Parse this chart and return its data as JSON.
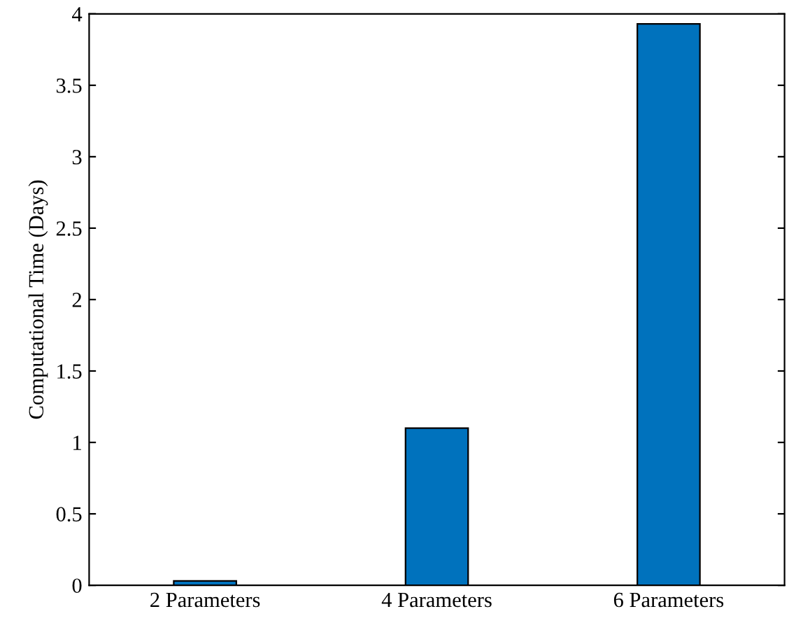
{
  "chart_data": {
    "type": "bar",
    "ylabel": "Computational Time (Days)",
    "categories": [
      "2 Parameters",
      "4 Parameters",
      "6 Parameters"
    ],
    "values": [
      0.03,
      1.1,
      3.93
    ],
    "color": "#0072bd",
    "ylim": [
      0,
      4
    ],
    "yticks": [
      0,
      0.5,
      1,
      1.5,
      2,
      2.5,
      3,
      3.5,
      4
    ],
    "grid": false,
    "legend": false
  }
}
